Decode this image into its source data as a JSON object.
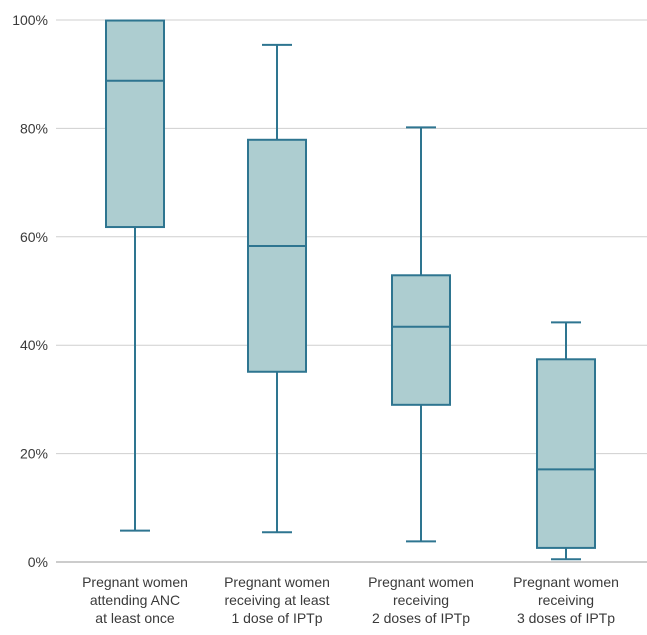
{
  "chart_data": {
    "type": "box",
    "ylim": [
      0,
      100
    ],
    "yticks": [
      0,
      20,
      40,
      60,
      80,
      100
    ],
    "ytick_labels": [
      "0%",
      "20%",
      "40%",
      "60%",
      "80%",
      "100%"
    ],
    "grid": true,
    "colors": {
      "box_fill": "#adcdd0",
      "box_stroke": "#2e7590",
      "grid": "#cfcfcf",
      "axis": "#9a9a9a"
    },
    "categories": [
      {
        "lines": [
          "Pregnant women",
          "attending ANC",
          "at least once"
        ],
        "min": 5.8,
        "q1": 61.8,
        "median": 88.8,
        "q3": 99.9,
        "max": 99.9
      },
      {
        "lines": [
          "Pregnant women",
          "receiving at least",
          "1 dose of IPTp"
        ],
        "min": 5.5,
        "q1": 35.1,
        "median": 58.3,
        "q3": 77.9,
        "max": 95.4
      },
      {
        "lines": [
          "Pregnant women",
          "receiving",
          "2 doses of IPTp"
        ],
        "min": 3.8,
        "q1": 29.0,
        "median": 43.4,
        "q3": 52.9,
        "max": 80.2
      },
      {
        "lines": [
          "Pregnant women",
          "receiving",
          "3 doses of IPTp"
        ],
        "min": 0.5,
        "q1": 2.6,
        "median": 17.1,
        "q3": 37.4,
        "max": 44.2
      }
    ]
  }
}
